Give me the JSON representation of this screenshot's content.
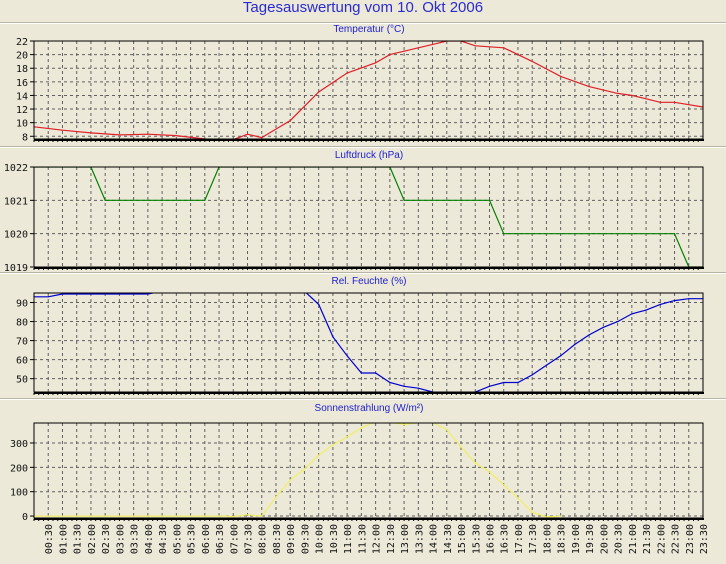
{
  "title": "Tagesauswertung vom 10. Okt 2006",
  "chart_data": [
    {
      "type": "line",
      "title": "Temperatur (°C)",
      "color": "#e0202a",
      "ylim": [
        7.6,
        22
      ],
      "yticks": [
        8,
        10,
        12,
        14,
        16,
        18,
        20,
        22
      ],
      "x_hours": [
        0,
        1,
        2,
        3,
        4,
        5,
        6,
        7,
        7.5,
        8,
        9,
        10,
        11,
        12,
        12.5,
        13,
        14,
        14.5,
        15,
        15.5,
        16.5,
        17.5,
        18.5,
        19.5,
        20.5,
        21,
        22,
        22.5,
        23.5
      ],
      "values": [
        9.4,
        8.9,
        8.5,
        8.2,
        8.3,
        8.1,
        7.6,
        7.5,
        8.3,
        7.8,
        10.3,
        14.5,
        17.3,
        18.8,
        20.0,
        20.5,
        21.5,
        22.0,
        22.0,
        21.3,
        21.0,
        19.0,
        16.8,
        15.3,
        14.3,
        14.0,
        13.0,
        13.0,
        12.3
      ]
    },
    {
      "type": "line",
      "title": "Luftdruck (hPa)",
      "color": "#008000",
      "ylim": [
        1019,
        1022
      ],
      "yticks": [
        1019,
        1020,
        1021,
        1022
      ],
      "x_hours": [
        0,
        2,
        2.5,
        6,
        6.5,
        12.5,
        13,
        16,
        16.5,
        22.5,
        23,
        23.5
      ],
      "values": [
        1022,
        1022,
        1021,
        1021,
        1022,
        1022,
        1021,
        1021,
        1020,
        1020,
        1019,
        1019
      ]
    },
    {
      "type": "line",
      "title": "Rel. Feuchte (%)",
      "color": "#0000d0",
      "ylim": [
        43,
        95
      ],
      "yticks": [
        50,
        60,
        70,
        80,
        90
      ],
      "x_hours": [
        0,
        0.5,
        1,
        4,
        4.5,
        9.5,
        10,
        10.5,
        11,
        11.5,
        12,
        12.5,
        13,
        13.5,
        14,
        14.5,
        15,
        15.5,
        16,
        16.5,
        17,
        17.5,
        18,
        18.5,
        19,
        19.5,
        20,
        20.5,
        21,
        21.5,
        22,
        22.5,
        23,
        23.5
      ],
      "values": [
        93,
        93,
        94.5,
        94.5,
        96,
        96,
        89,
        72,
        62,
        53,
        53,
        48,
        46,
        45,
        43,
        42,
        42,
        43,
        46,
        48,
        48,
        52,
        57,
        62,
        68,
        73,
        77,
        80,
        84,
        86,
        89,
        91,
        92,
        92
      ]
    },
    {
      "type": "line",
      "title": "Sonnenstrahlung (W/m²)",
      "color": "#f0f060",
      "ylim": [
        -8,
        382
      ],
      "yticks": [
        0,
        100,
        200,
        300
      ],
      "x_hours": [
        0,
        6.5,
        7,
        7.5,
        8,
        8.5,
        9,
        9.5,
        10,
        10.5,
        11,
        11.5,
        12,
        12.5,
        13,
        13.5,
        14,
        14.5,
        15,
        15.5,
        16,
        16.5,
        17,
        17.5,
        18,
        18.5
      ],
      "values": [
        0,
        0,
        -2,
        5,
        0,
        78,
        148,
        193,
        250,
        292,
        325,
        362,
        390,
        385,
        376,
        384,
        385,
        354,
        284,
        218,
        181,
        128,
        74,
        16,
        -4,
        0
      ]
    }
  ],
  "x_axis": {
    "range_hours": [
      0,
      23.5
    ],
    "tick_labels": [
      "00:30",
      "01:00",
      "01:30",
      "02:00",
      "02:30",
      "03:00",
      "03:30",
      "04:00",
      "04:30",
      "05:00",
      "05:30",
      "06:00",
      "06:30",
      "07:00",
      "07:30",
      "08:00",
      "08:30",
      "09:00",
      "09:30",
      "10:00",
      "10:30",
      "11:00",
      "11:30",
      "12:00",
      "12:30",
      "13:00",
      "13:30",
      "14:00",
      "14:30",
      "15:00",
      "15:30",
      "16:00",
      "16:30",
      "17:00",
      "17:30",
      "18:00",
      "18:30",
      "19:00",
      "19:30",
      "20:00",
      "20:30",
      "21:00",
      "21:30",
      "22:00",
      "22:30",
      "23:00",
      "23:30"
    ]
  }
}
